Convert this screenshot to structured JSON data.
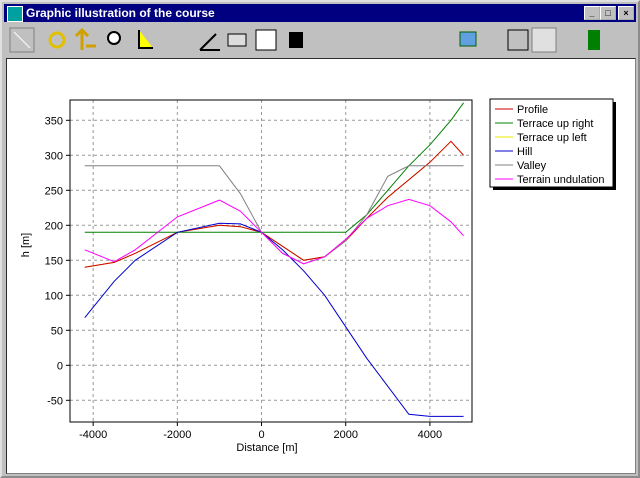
{
  "window": {
    "title": "Graphic illustration of the course"
  },
  "chart_data": {
    "type": "line",
    "xlabel": "Distance [m]",
    "ylabel": "h [m]",
    "x": [
      -4200,
      -3500,
      -3000,
      -2000,
      -1000,
      -500,
      0,
      500,
      1000,
      1500,
      2000,
      2500,
      3000,
      3500,
      4000,
      4500,
      4800
    ],
    "series": [
      {
        "name": "Terrace up left",
        "color": "#e8e800",
        "values": [
          140,
          147,
          160,
          190,
          200,
          198,
          190,
          170,
          150,
          155,
          178,
          210,
          240,
          265,
          290,
          320,
          300
        ]
      },
      {
        "name": "Profile",
        "color": "#cc0000",
        "values": [
          140,
          147,
          160,
          190,
          200,
          198,
          190,
          170,
          150,
          155,
          178,
          210,
          240,
          265,
          290,
          320,
          300
        ]
      },
      {
        "name": "Terrace up right",
        "color": "#008000",
        "values": [
          190,
          190,
          190,
          190,
          190,
          190,
          190,
          190,
          190,
          190,
          190,
          215,
          250,
          285,
          315,
          350,
          375
        ]
      },
      {
        "name": "Hill",
        "color": "#0000cc",
        "values": [
          68,
          120,
          150,
          190,
          203,
          202,
          190,
          165,
          135,
          100,
          55,
          10,
          -30,
          -70,
          -73,
          -73,
          -73
        ]
      },
      {
        "name": "Valley",
        "color": "#808080",
        "values": [
          285,
          285,
          285,
          285,
          285,
          245,
          190,
          160,
          145,
          155,
          178,
          215,
          270,
          285,
          285,
          285,
          285
        ]
      },
      {
        "name": "Terrain undulation",
        "color": "#ff00ff",
        "values": [
          165,
          148,
          165,
          212,
          236,
          220,
          190,
          160,
          145,
          155,
          180,
          210,
          228,
          237,
          228,
          205,
          185
        ]
      }
    ],
    "legend_order": [
      1,
      2,
      0,
      3,
      4,
      5
    ],
    "xlim": [
      -4550,
      5000
    ],
    "ylim": [
      -81,
      379
    ],
    "xticks": [
      -4000,
      -2000,
      0,
      2000,
      4000
    ],
    "yticks": [
      -50,
      0,
      50,
      100,
      150,
      200,
      250,
      300,
      350
    ],
    "grid": true
  }
}
